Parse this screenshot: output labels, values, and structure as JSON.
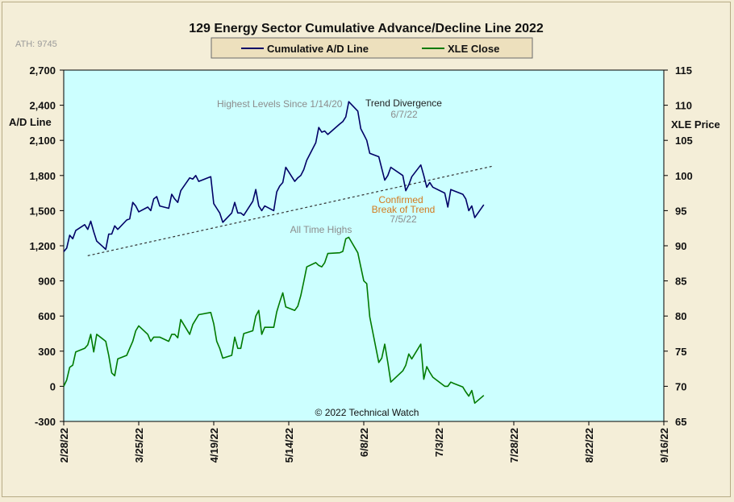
{
  "chart_data": {
    "type": "line",
    "title": "129 Energy Sector Cumulative Advance/Decline Line 2022",
    "ath_label": "ATH: 9745",
    "copyright": "© 2022 Technical Watch",
    "y_left": {
      "label": "A/D Line",
      "range": [
        -300,
        2700
      ],
      "ticks": [
        "2,700",
        "2,400",
        "2,100",
        "1,800",
        "1,500",
        "1,200",
        "900",
        "600",
        "300",
        "0",
        "-300"
      ]
    },
    "y_right": {
      "label": "XLE Price",
      "range": [
        65,
        115
      ],
      "ticks": [
        "115",
        "110",
        "105",
        "100",
        "95",
        "90",
        "85",
        "80",
        "75",
        "70",
        "65"
      ]
    },
    "x": {
      "range": [
        "2022-02-28",
        "2022-09-16"
      ],
      "ticks": [
        "2/28/22",
        "3/25/22",
        "4/19/22",
        "5/14/22",
        "6/8/22",
        "7/3/22",
        "7/28/22",
        "8/22/22",
        "9/16/22"
      ]
    },
    "grid": false,
    "legend": {
      "placement": "top-center",
      "entries": [
        {
          "name": "Cumulative A/D Line",
          "color": "#000066"
        },
        {
          "name": "XLE Close",
          "color": "#007a00"
        }
      ]
    },
    "colors": {
      "plot_background": "#ccffff",
      "ad_line": "#000066",
      "xle_line": "#007a00",
      "annotation_gray": "#8c8c8c",
      "annotation_orange": "#d27a1e"
    },
    "annotations": [
      {
        "text": "Highest Levels  Since 1/14/20",
        "color": "gray"
      },
      {
        "text": "Trend  Divergence",
        "color": "dark"
      },
      {
        "text": "6/7/22",
        "color": "gray"
      },
      {
        "text": "Confirmed",
        "color": "orange"
      },
      {
        "text": "Break of Trend",
        "color": "orange"
      },
      {
        "text": "7/5/22",
        "color": "gray"
      },
      {
        "text": "All Time Highs",
        "color": "gray"
      }
    ],
    "trendline": {
      "x": [
        "2022-03-08",
        "2022-07-21"
      ],
      "y": [
        1115,
        1880
      ],
      "axis": "left"
    },
    "series": [
      {
        "name": "Cumulative A/D Line",
        "axis": "left",
        "x": [
          "2022-02-28",
          "2022-03-01",
          "2022-03-02",
          "2022-03-03",
          "2022-03-04",
          "2022-03-07",
          "2022-03-08",
          "2022-03-09",
          "2022-03-10",
          "2022-03-11",
          "2022-03-14",
          "2022-03-15",
          "2022-03-16",
          "2022-03-17",
          "2022-03-18",
          "2022-03-21",
          "2022-03-22",
          "2022-03-23",
          "2022-03-24",
          "2022-03-25",
          "2022-03-28",
          "2022-03-29",
          "2022-03-30",
          "2022-03-31",
          "2022-04-01",
          "2022-04-04",
          "2022-04-05",
          "2022-04-06",
          "2022-04-07",
          "2022-04-08",
          "2022-04-11",
          "2022-04-12",
          "2022-04-13",
          "2022-04-14",
          "2022-04-18",
          "2022-04-19",
          "2022-04-20",
          "2022-04-21",
          "2022-04-22",
          "2022-04-25",
          "2022-04-26",
          "2022-04-27",
          "2022-04-28",
          "2022-04-29",
          "2022-05-02",
          "2022-05-03",
          "2022-05-04",
          "2022-05-05",
          "2022-05-06",
          "2022-05-09",
          "2022-05-10",
          "2022-05-11",
          "2022-05-12",
          "2022-05-13",
          "2022-05-16",
          "2022-05-17",
          "2022-05-18",
          "2022-05-19",
          "2022-05-20",
          "2022-05-23",
          "2022-05-24",
          "2022-05-25",
          "2022-05-26",
          "2022-05-27",
          "2022-05-31",
          "2022-06-01",
          "2022-06-02",
          "2022-06-03",
          "2022-06-06",
          "2022-06-07",
          "2022-06-08",
          "2022-06-09",
          "2022-06-10",
          "2022-06-13",
          "2022-06-14",
          "2022-06-15",
          "2022-06-16",
          "2022-06-17",
          "2022-06-21",
          "2022-06-22",
          "2022-06-23",
          "2022-06-24",
          "2022-06-27",
          "2022-06-28",
          "2022-06-29",
          "2022-06-30",
          "2022-07-01",
          "2022-07-05",
          "2022-07-06",
          "2022-07-07",
          "2022-07-08",
          "2022-07-11",
          "2022-07-12",
          "2022-07-13",
          "2022-07-14",
          "2022-07-15",
          "2022-07-18"
        ],
        "values": [
          1150,
          1180,
          1290,
          1260,
          1330,
          1380,
          1340,
          1410,
          1320,
          1240,
          1170,
          1300,
          1300,
          1370,
          1340,
          1420,
          1430,
          1570,
          1540,
          1490,
          1530,
          1500,
          1600,
          1620,
          1540,
          1520,
          1640,
          1600,
          1570,
          1670,
          1780,
          1770,
          1800,
          1750,
          1790,
          1560,
          1520,
          1480,
          1400,
          1480,
          1570,
          1480,
          1480,
          1460,
          1580,
          1680,
          1540,
          1500,
          1540,
          1500,
          1660,
          1710,
          1740,
          1870,
          1750,
          1780,
          1800,
          1850,
          1930,
          2080,
          2210,
          2170,
          2180,
          2150,
          2240,
          2260,
          2300,
          2430,
          2350,
          2200,
          2150,
          2100,
          1990,
          1960,
          1860,
          1760,
          1800,
          1870,
          1800,
          1670,
          1720,
          1790,
          1890,
          1800,
          1700,
          1740,
          1700,
          1650,
          1530,
          1680,
          1670,
          1640,
          1600,
          1500,
          1540,
          1440,
          1550
        ]
      },
      {
        "name": "XLE Close",
        "axis": "right",
        "x": [
          "2022-02-28",
          "2022-03-01",
          "2022-03-02",
          "2022-03-03",
          "2022-03-04",
          "2022-03-07",
          "2022-03-08",
          "2022-03-09",
          "2022-03-10",
          "2022-03-11",
          "2022-03-14",
          "2022-03-15",
          "2022-03-16",
          "2022-03-17",
          "2022-03-18",
          "2022-03-21",
          "2022-03-22",
          "2022-03-23",
          "2022-03-24",
          "2022-03-25",
          "2022-03-28",
          "2022-03-29",
          "2022-03-30",
          "2022-03-31",
          "2022-04-01",
          "2022-04-04",
          "2022-04-05",
          "2022-04-06",
          "2022-04-07",
          "2022-04-08",
          "2022-04-11",
          "2022-04-12",
          "2022-04-13",
          "2022-04-14",
          "2022-04-18",
          "2022-04-19",
          "2022-04-20",
          "2022-04-21",
          "2022-04-22",
          "2022-04-25",
          "2022-04-26",
          "2022-04-27",
          "2022-04-28",
          "2022-04-29",
          "2022-05-02",
          "2022-05-03",
          "2022-05-04",
          "2022-05-05",
          "2022-05-06",
          "2022-05-09",
          "2022-05-10",
          "2022-05-11",
          "2022-05-12",
          "2022-05-13",
          "2022-05-16",
          "2022-05-17",
          "2022-05-18",
          "2022-05-19",
          "2022-05-20",
          "2022-05-23",
          "2022-05-24",
          "2022-05-25",
          "2022-05-26",
          "2022-05-27",
          "2022-05-31",
          "2022-06-01",
          "2022-06-02",
          "2022-06-03",
          "2022-06-06",
          "2022-06-07",
          "2022-06-08",
          "2022-06-09",
          "2022-06-10",
          "2022-06-13",
          "2022-06-14",
          "2022-06-15",
          "2022-06-16",
          "2022-06-17",
          "2022-06-21",
          "2022-06-22",
          "2022-06-23",
          "2022-06-24",
          "2022-06-27",
          "2022-06-28",
          "2022-06-29",
          "2022-06-30",
          "2022-07-01",
          "2022-07-05",
          "2022-07-06",
          "2022-07-07",
          "2022-07-08",
          "2022-07-11",
          "2022-07-12",
          "2022-07-13",
          "2022-07-14",
          "2022-07-15",
          "2022-07-18"
        ],
        "values": [
          70.0,
          70.9,
          72.7,
          73.0,
          74.9,
          75.4,
          75.9,
          77.4,
          74.9,
          77.4,
          76.4,
          74.4,
          71.9,
          71.5,
          73.9,
          74.4,
          75.4,
          76.4,
          77.9,
          78.6,
          77.4,
          76.4,
          77.0,
          77.0,
          77.0,
          76.4,
          77.4,
          77.4,
          76.9,
          79.5,
          77.4,
          78.8,
          79.5,
          80.2,
          80.5,
          78.9,
          76.4,
          75.4,
          74.0,
          74.4,
          77.0,
          75.4,
          75.4,
          77.5,
          77.9,
          80.0,
          80.8,
          77.4,
          78.4,
          78.4,
          80.6,
          82.0,
          83.3,
          81.3,
          80.8,
          81.4,
          82.9,
          84.9,
          87.0,
          87.6,
          87.2,
          87.0,
          87.6,
          88.9,
          89.0,
          89.2,
          91.0,
          91.2,
          89.0,
          87.0,
          85.0,
          84.6,
          79.9,
          73.4,
          74.0,
          76.0,
          73.4,
          70.6,
          72.2,
          73.0,
          74.6,
          73.9,
          76.0,
          71.0,
          72.8,
          72.0,
          71.3,
          70.0,
          70.0,
          70.6,
          70.4,
          69.9,
          69.2,
          68.6,
          69.4,
          67.6,
          68.7
        ]
      }
    ]
  }
}
